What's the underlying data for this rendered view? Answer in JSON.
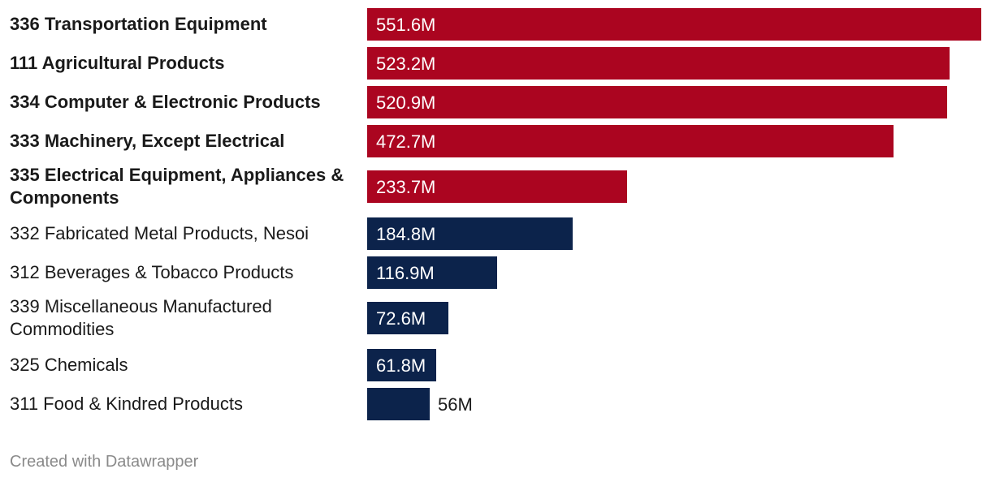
{
  "chart_data": {
    "type": "bar",
    "orientation": "horizontal",
    "title": "",
    "xlabel": "",
    "ylabel": "",
    "xlim": [
      0,
      551.6
    ],
    "unit": "M",
    "colors": {
      "highlight": "#ab0520",
      "base": "#0c234b"
    },
    "categories": [
      "336 Transportation Equipment",
      "111 Agricultural Products",
      "334 Computer & Electronic Products",
      "333 Machinery, Except Electrical",
      "335 Electrical Equipment, Appliances & Components",
      "332 Fabricated Metal Products, Nesoi",
      "312 Beverages & Tobacco Products",
      "339 Miscellaneous Manufactured Commodities",
      "325 Chemicals",
      "311 Food & Kindred Products"
    ],
    "values": [
      551.6,
      523.2,
      520.9,
      472.7,
      233.7,
      184.8,
      116.9,
      72.6,
      61.8,
      56
    ],
    "value_labels": [
      "551.6M",
      "523.2M",
      "520.9M",
      "472.7M",
      "233.7M",
      "184.8M",
      "116.9M",
      "72.6M",
      "61.8M",
      "56M"
    ],
    "highlighted": [
      true,
      true,
      true,
      true,
      true,
      false,
      false,
      false,
      false,
      false
    ]
  },
  "footer": "Created with Datawrapper"
}
